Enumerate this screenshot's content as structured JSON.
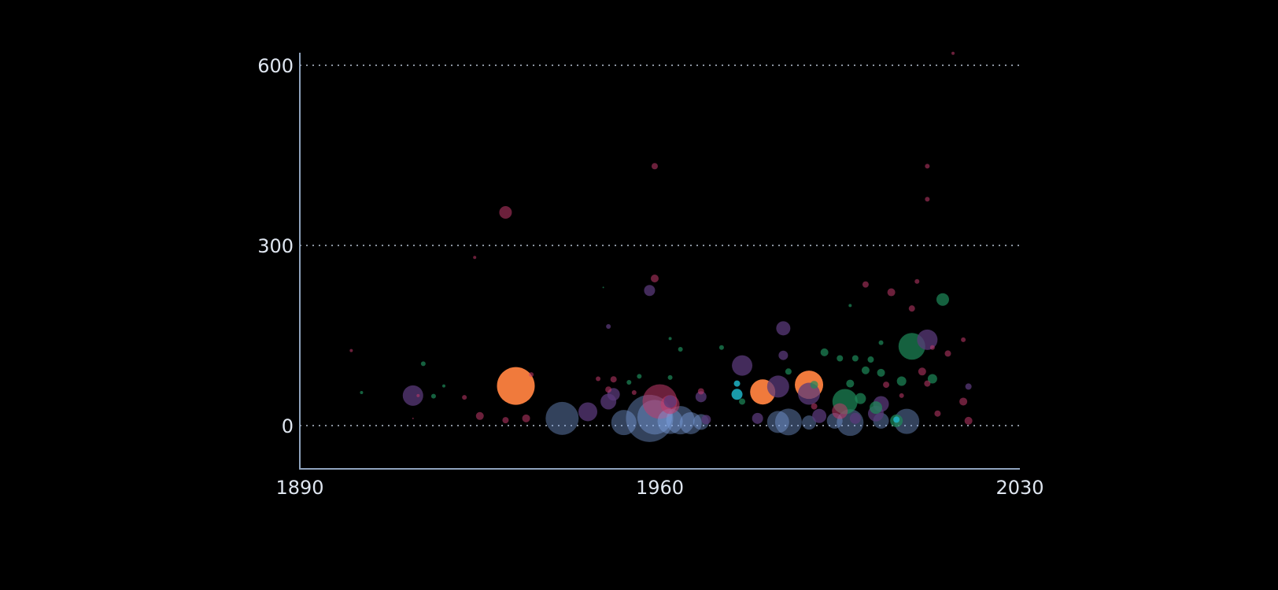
{
  "chart_data": {
    "type": "scatter",
    "title": "",
    "xlabel": "",
    "ylabel": "",
    "xlim": [
      1890,
      2030
    ],
    "ylim": [
      -75,
      620
    ],
    "x_ticks": [
      1890,
      1960,
      2030
    ],
    "x_tick_labels": [
      "1890",
      "1960",
      "2030"
    ],
    "y_ticks": [
      0,
      300,
      600
    ],
    "y_tick_labels": [
      "0",
      "300",
      "600"
    ],
    "grid": "horizontal-dotted",
    "legend": "none",
    "colors": {
      "background": "#000000",
      "axis": "#8fa3bd",
      "grid": "#b8c4d4",
      "tick_text": "#dfe6f0"
    },
    "series": [
      {
        "color": "#f07a3c",
        "opacity": 1.0,
        "points": [
          {
            "x": 1932,
            "y": 66,
            "size": 24
          },
          {
            "x": 1980,
            "y": 56,
            "size": 16
          },
          {
            "x": 1989,
            "y": 68,
            "size": 18
          }
        ]
      },
      {
        "color": "#7fa6e6",
        "opacity": 0.4,
        "points": [
          {
            "x": 1941,
            "y": 12,
            "size": 21
          },
          {
            "x": 1953,
            "y": 5,
            "size": 16
          },
          {
            "x": 1958,
            "y": 12,
            "size": 30
          },
          {
            "x": 1959,
            "y": 14,
            "size": 22
          },
          {
            "x": 1962,
            "y": 7,
            "size": 16
          },
          {
            "x": 1964,
            "y": 9,
            "size": 18
          },
          {
            "x": 1966,
            "y": 4,
            "size": 14
          },
          {
            "x": 1968,
            "y": 6,
            "size": 10
          },
          {
            "x": 1983,
            "y": 6,
            "size": 14
          },
          {
            "x": 1985,
            "y": 6,
            "size": 17
          },
          {
            "x": 1989,
            "y": 5,
            "size": 9
          },
          {
            "x": 1994,
            "y": 8,
            "size": 10
          },
          {
            "x": 1997,
            "y": 5,
            "size": 17
          },
          {
            "x": 2003,
            "y": 8,
            "size": 10
          },
          {
            "x": 2008,
            "y": 7,
            "size": 16
          }
        ]
      },
      {
        "color": "#c33a6b",
        "opacity": 0.55,
        "points": [
          {
            "x": 1900,
            "y": 125,
            "size": 2
          },
          {
            "x": 1912,
            "y": 12,
            "size": 1
          },
          {
            "x": 1913,
            "y": 50,
            "size": 2
          },
          {
            "x": 1922,
            "y": 47,
            "size": 3
          },
          {
            "x": 1924,
            "y": 280,
            "size": 2
          },
          {
            "x": 1925,
            "y": 16,
            "size": 5
          },
          {
            "x": 1930,
            "y": 355,
            "size": 8
          },
          {
            "x": 1930,
            "y": 9,
            "size": 4
          },
          {
            "x": 1934,
            "y": 12,
            "size": 5
          },
          {
            "x": 1935,
            "y": 85,
            "size": 3
          },
          {
            "x": 1948,
            "y": 78,
            "size": 3
          },
          {
            "x": 1950,
            "y": 60,
            "size": 4
          },
          {
            "x": 1951,
            "y": 77,
            "size": 4
          },
          {
            "x": 1955,
            "y": 55,
            "size": 3
          },
          {
            "x": 1959,
            "y": 432,
            "size": 4
          },
          {
            "x": 1959,
            "y": 245,
            "size": 5
          },
          {
            "x": 1960,
            "y": 40,
            "size": 22
          },
          {
            "x": 1962,
            "y": 35,
            "size": 12
          },
          {
            "x": 1968,
            "y": 57,
            "size": 4
          },
          {
            "x": 1990,
            "y": 32,
            "size": 4
          },
          {
            "x": 1995,
            "y": 24,
            "size": 10
          },
          {
            "x": 2000,
            "y": 235,
            "size": 4
          },
          {
            "x": 2004,
            "y": 68,
            "size": 4
          },
          {
            "x": 2005,
            "y": 222,
            "size": 5
          },
          {
            "x": 2007,
            "y": 50,
            "size": 3
          },
          {
            "x": 2009,
            "y": 195,
            "size": 4
          },
          {
            "x": 2010,
            "y": 240,
            "size": 3
          },
          {
            "x": 2011,
            "y": 90,
            "size": 5
          },
          {
            "x": 2012,
            "y": 70,
            "size": 4
          },
          {
            "x": 2012,
            "y": 432,
            "size": 3
          },
          {
            "x": 2012,
            "y": 377,
            "size": 3
          },
          {
            "x": 2013,
            "y": 130,
            "size": 3
          },
          {
            "x": 2014,
            "y": 20,
            "size": 4
          },
          {
            "x": 2016,
            "y": 120,
            "size": 4
          },
          {
            "x": 2017,
            "y": 620,
            "size": 2
          },
          {
            "x": 2019,
            "y": 143,
            "size": 3
          },
          {
            "x": 2019,
            "y": 40,
            "size": 5
          },
          {
            "x": 2020,
            "y": 8,
            "size": 5
          }
        ]
      },
      {
        "color": "#5a3a7a",
        "opacity": 0.75,
        "points": [
          {
            "x": 1912,
            "y": 50,
            "size": 13
          },
          {
            "x": 1946,
            "y": 23,
            "size": 12
          },
          {
            "x": 1950,
            "y": 40,
            "size": 10
          },
          {
            "x": 1951,
            "y": 52,
            "size": 8
          },
          {
            "x": 1950,
            "y": 165,
            "size": 3
          },
          {
            "x": 1958,
            "y": 225,
            "size": 7
          },
          {
            "x": 1962,
            "y": 40,
            "size": 8
          },
          {
            "x": 1968,
            "y": 48,
            "size": 7
          },
          {
            "x": 1969,
            "y": 10,
            "size": 6
          },
          {
            "x": 1976,
            "y": 100,
            "size": 13
          },
          {
            "x": 1979,
            "y": 12,
            "size": 7
          },
          {
            "x": 1983,
            "y": 65,
            "size": 14
          },
          {
            "x": 1984,
            "y": 162,
            "size": 9
          },
          {
            "x": 1984,
            "y": 117,
            "size": 6
          },
          {
            "x": 1989,
            "y": 53,
            "size": 14
          },
          {
            "x": 1991,
            "y": 16,
            "size": 9
          },
          {
            "x": 1998,
            "y": 12,
            "size": 7
          },
          {
            "x": 2002,
            "y": 20,
            "size": 10
          },
          {
            "x": 2003,
            "y": 36,
            "size": 10
          },
          {
            "x": 2012,
            "y": 143,
            "size": 13
          },
          {
            "x": 2020,
            "y": 65,
            "size": 4
          }
        ]
      },
      {
        "color": "#1e8a5a",
        "opacity": 0.7,
        "points": [
          {
            "x": 1902,
            "y": 55,
            "size": 2
          },
          {
            "x": 1914,
            "y": 103,
            "size": 3
          },
          {
            "x": 1916,
            "y": 49,
            "size": 3
          },
          {
            "x": 1918,
            "y": 66,
            "size": 2
          },
          {
            "x": 1949,
            "y": 230,
            "size": 1
          },
          {
            "x": 1954,
            "y": 72,
            "size": 3
          },
          {
            "x": 1956,
            "y": 82,
            "size": 3
          },
          {
            "x": 1962,
            "y": 80,
            "size": 3
          },
          {
            "x": 1962,
            "y": 145,
            "size": 2
          },
          {
            "x": 1964,
            "y": 127,
            "size": 3
          },
          {
            "x": 1972,
            "y": 130,
            "size": 3
          },
          {
            "x": 1976,
            "y": 40,
            "size": 4
          },
          {
            "x": 1985,
            "y": 90,
            "size": 4
          },
          {
            "x": 1990,
            "y": 68,
            "size": 5
          },
          {
            "x": 1992,
            "y": 122,
            "size": 5
          },
          {
            "x": 1995,
            "y": 112,
            "size": 4
          },
          {
            "x": 1996,
            "y": 40,
            "size": 16
          },
          {
            "x": 1997,
            "y": 200,
            "size": 2
          },
          {
            "x": 1997,
            "y": 70,
            "size": 5
          },
          {
            "x": 1998,
            "y": 112,
            "size": 4
          },
          {
            "x": 1999,
            "y": 45,
            "size": 7
          },
          {
            "x": 2000,
            "y": 92,
            "size": 5
          },
          {
            "x": 2001,
            "y": 110,
            "size": 4
          },
          {
            "x": 2002,
            "y": 30,
            "size": 8
          },
          {
            "x": 2003,
            "y": 88,
            "size": 5
          },
          {
            "x": 2003,
            "y": 138,
            "size": 3
          },
          {
            "x": 2006,
            "y": 8,
            "size": 8
          },
          {
            "x": 2007,
            "y": 74,
            "size": 6
          },
          {
            "x": 2009,
            "y": 132,
            "size": 17
          },
          {
            "x": 2013,
            "y": 78,
            "size": 6
          },
          {
            "x": 2015,
            "y": 210,
            "size": 8
          }
        ]
      },
      {
        "color": "#1fb5c8",
        "opacity": 0.85,
        "points": [
          {
            "x": 1975,
            "y": 52,
            "size": 7
          },
          {
            "x": 1975,
            "y": 70,
            "size": 4
          },
          {
            "x": 2006,
            "y": 10,
            "size": 4
          }
        ]
      }
    ]
  }
}
